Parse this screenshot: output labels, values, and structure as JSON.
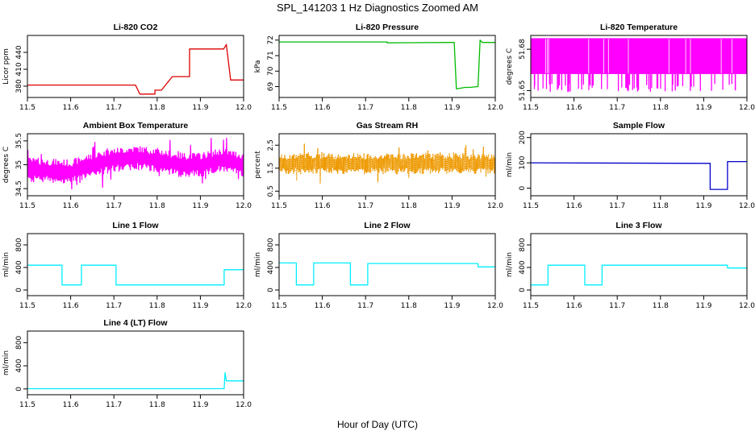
{
  "figure": {
    "title": "SPL_141203  1 Hz Diagnostics Zoomed AM",
    "xlabel": "Hour of Day (UTC)"
  },
  "chart_data": [
    {
      "title": "Li-820 CO2",
      "type": "line",
      "ylabel": "Licor ppm",
      "color": "#dd0000",
      "xlim": [
        11.5,
        12.0
      ],
      "ylim": [
        360,
        470
      ],
      "xticks": [
        "11.5",
        "11.6",
        "11.7",
        "11.8",
        "11.9",
        "12.0"
      ],
      "yticks": [
        "380",
        "410",
        "440"
      ],
      "series": [
        {
          "name": "CO2",
          "x": [
            11.5,
            11.75,
            11.75,
            11.76,
            11.76,
            11.795,
            11.795,
            11.81,
            11.81,
            11.835,
            11.835,
            11.875,
            11.875,
            11.954,
            11.954,
            11.96,
            11.96,
            11.97,
            11.97,
            12.0
          ],
          "y": [
            382,
            382,
            382,
            366,
            366,
            366,
            373,
            373,
            373,
            397,
            397,
            397,
            446,
            446,
            446,
            454,
            454,
            391,
            391,
            391
          ]
        }
      ]
    },
    {
      "title": "Li-820 Pressure",
      "type": "line",
      "ylabel": "kPa",
      "color": "#00bb00",
      "xlim": [
        11.5,
        12.0
      ],
      "ylim": [
        68.3,
        72.3
      ],
      "xticks": [
        "11.5",
        "11.6",
        "11.7",
        "11.8",
        "11.9",
        "12.0"
      ],
      "yticks": [
        "69",
        "70",
        "71",
        "72"
      ],
      "series": [
        {
          "name": "Pressure",
          "x": [
            11.5,
            11.75,
            11.75,
            11.9,
            11.905,
            11.91,
            11.93,
            11.94,
            11.96,
            11.965,
            11.97,
            12.0
          ],
          "y": [
            71.88,
            71.88,
            71.82,
            71.85,
            71.85,
            68.85,
            68.95,
            68.95,
            69.0,
            72.0,
            71.85,
            71.85
          ]
        }
      ]
    },
    {
      "title": "Li-820 Temperature",
      "type": "line",
      "ylabel": "degrees C",
      "color": "#ff00ff",
      "xlim": [
        11.5,
        12.0
      ],
      "ylim": [
        51.645,
        51.69
      ],
      "xticks": [
        "11.5",
        "11.6",
        "11.7",
        "11.8",
        "11.9",
        "12.0"
      ],
      "yticks": [
        "51.65",
        "51.68"
      ],
      "series": [
        {
          "name": "Temperature",
          "x": [
            11.5,
            12.0
          ],
          "y": [
            51.675,
            51.675
          ],
          "band": [
            51.662,
            51.688
          ],
          "spike_low": 51.649
        }
      ]
    },
    {
      "title": "Ambient Box Temperature",
      "type": "line",
      "ylabel": "degrees C",
      "color": "#ff00ff",
      "xlim": [
        11.5,
        12.0
      ],
      "ylim": [
        34.35,
        35.65
      ],
      "xticks": [
        "11.5",
        "11.6",
        "11.7",
        "11.8",
        "11.9",
        "12.0"
      ],
      "yticks": [
        "34.5",
        "35",
        "35.5"
      ],
      "series": [
        {
          "name": "Box Temp",
          "x": [
            11.5,
            11.6,
            11.65,
            11.7,
            11.75,
            11.8,
            11.85,
            11.9,
            11.95,
            12.0
          ],
          "y": [
            34.9,
            34.85,
            35.0,
            35.1,
            35.15,
            35.1,
            35.0,
            35.0,
            35.1,
            35.0
          ],
          "band_half": 0.25
        }
      ]
    },
    {
      "title": "Gas Stream RH",
      "type": "scatter",
      "ylabel": "percent",
      "color": "#ee9900",
      "xlim": [
        11.5,
        12.0
      ],
      "ylim": [
        0.3,
        3.0
      ],
      "xticks": [
        "11.5",
        "11.6",
        "11.7",
        "11.8",
        "11.9",
        "12.0"
      ],
      "yticks": [
        "0.5",
        "1.5",
        "2.5"
      ],
      "series": [
        {
          "name": "RH",
          "x": [
            11.5,
            12.0
          ],
          "y": [
            1.7,
            1.7
          ],
          "band_half": 0.45
        }
      ]
    },
    {
      "title": "Sample Flow",
      "type": "line",
      "ylabel": "ml/min",
      "color": "#0000cc",
      "xlim": [
        11.5,
        12.0
      ],
      "ylim": [
        -30,
        215
      ],
      "xticks": [
        "11.5",
        "11.6",
        "11.7",
        "11.8",
        "11.9",
        "12.0"
      ],
      "yticks": [
        "0",
        "100",
        "200"
      ],
      "series": [
        {
          "name": "Sample",
          "x": [
            11.5,
            11.915,
            11.915,
            11.955,
            11.955,
            12.0
          ],
          "y": [
            100,
            98,
            -5,
            -5,
            105,
            105
          ]
        }
      ]
    },
    {
      "title": "Line 1 Flow",
      "type": "line",
      "ylabel": "ml/min",
      "color": "#00eeff",
      "xlim": [
        11.5,
        12.0
      ],
      "ylim": [
        -100,
        1000
      ],
      "xticks": [
        "11.5",
        "11.6",
        "11.7",
        "11.8",
        "11.9",
        "12.0"
      ],
      "yticks": [
        "0",
        "400",
        "800"
      ],
      "series": [
        {
          "name": "Line 1",
          "x": [
            11.5,
            11.58,
            11.58,
            11.625,
            11.625,
            11.705,
            11.705,
            11.955,
            11.955,
            12.0
          ],
          "y": [
            440,
            440,
            90,
            90,
            440,
            440,
            90,
            90,
            360,
            360
          ]
        }
      ]
    },
    {
      "title": "Line 2 Flow",
      "type": "line",
      "ylabel": "ml/min",
      "color": "#00eeff",
      "xlim": [
        11.5,
        12.0
      ],
      "ylim": [
        -100,
        1000
      ],
      "xticks": [
        "11.5",
        "11.6",
        "11.7",
        "11.8",
        "11.9",
        "12.0"
      ],
      "yticks": [
        "0",
        "400",
        "800"
      ],
      "series": [
        {
          "name": "Line 2",
          "x": [
            11.5,
            11.54,
            11.54,
            11.58,
            11.58,
            11.665,
            11.665,
            11.705,
            11.705,
            11.96,
            11.96,
            12.0
          ],
          "y": [
            480,
            480,
            90,
            90,
            480,
            480,
            90,
            90,
            470,
            470,
            410,
            410
          ]
        }
      ]
    },
    {
      "title": "Line 3 Flow",
      "type": "line",
      "ylabel": "ml/min",
      "color": "#00eeff",
      "xlim": [
        11.5,
        12.0
      ],
      "ylim": [
        -100,
        1000
      ],
      "xticks": [
        "11.5",
        "11.6",
        "11.7",
        "11.8",
        "11.9",
        "12.0"
      ],
      "yticks": [
        "0",
        "400",
        "800"
      ],
      "series": [
        {
          "name": "Line 3",
          "x": [
            11.5,
            11.54,
            11.54,
            11.625,
            11.625,
            11.665,
            11.665,
            11.955,
            11.955,
            12.0
          ],
          "y": [
            90,
            90,
            440,
            440,
            90,
            90,
            440,
            440,
            390,
            390
          ]
        }
      ]
    },
    {
      "title": "Line 4 (LT) Flow",
      "type": "line",
      "ylabel": "ml/min",
      "color": "#00eeff",
      "xlim": [
        11.5,
        12.0
      ],
      "ylim": [
        -100,
        1000
      ],
      "xticks": [
        "11.5",
        "11.6",
        "11.7",
        "11.8",
        "11.9",
        "12.0"
      ],
      "yticks": [
        "0",
        "400",
        "800"
      ],
      "series": [
        {
          "name": "Line 4",
          "x": [
            11.5,
            11.955,
            11.957,
            11.96,
            11.965,
            12.0
          ],
          "y": [
            5,
            5,
            280,
            140,
            140,
            140
          ]
        }
      ]
    }
  ]
}
